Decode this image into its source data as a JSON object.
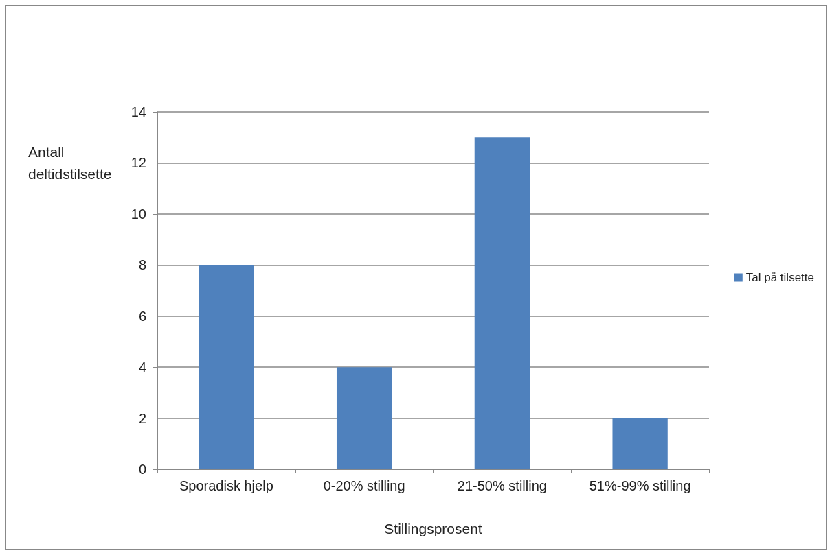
{
  "chart_data": {
    "type": "bar",
    "xlabel": "Stillingsprosent",
    "ylabel": "Antall deltidstilsette",
    "categories": [
      "Sporadisk hjelp",
      "0-20% stilling",
      "21-50% stilling",
      "51%-99% stilling"
    ],
    "series": [
      {
        "name": "Tal på tilsette",
        "color": "#4f81bd",
        "values": [
          8,
          4,
          13,
          2
        ]
      }
    ],
    "ylim": [
      0,
      14
    ],
    "yticks": [
      0,
      2,
      4,
      6,
      8,
      10,
      12,
      14
    ],
    "grid": "y",
    "legend": "right"
  }
}
